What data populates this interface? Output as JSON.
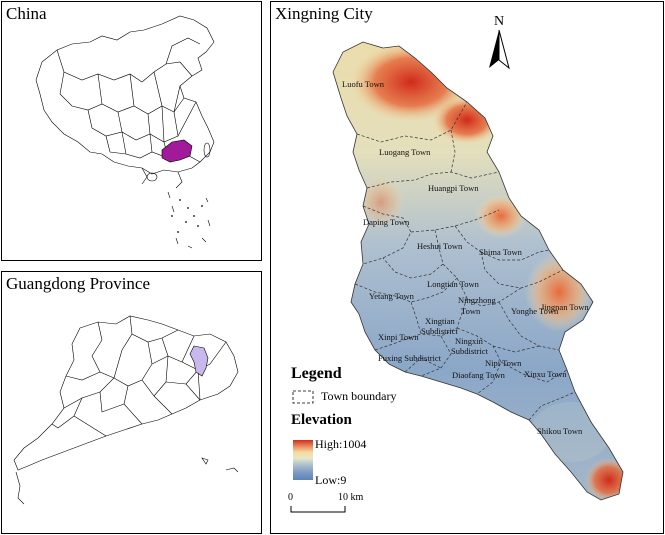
{
  "panels": {
    "china": {
      "title": "China"
    },
    "guangdong": {
      "title": "Guangdong Province"
    },
    "xingning": {
      "title": "Xingning City"
    }
  },
  "north_arrow": {
    "label": "N"
  },
  "towns": {
    "luofu": "Luofu Town",
    "luogang": "Luogang Town",
    "huangpi": "Huangpi Town",
    "diping": "Daping Town",
    "heshui": "Heshui Town",
    "shima": "Shima Town",
    "longtian": "Longtian Town",
    "yetang": "Yetang Town",
    "ningzhong": "Ningzhong",
    "ningzhong2": "Town",
    "yonghe": "Yonghe Town",
    "jingnan": "Jingnan Town",
    "xinjian1": "Xingtian",
    "xinjian2": "Subdistrict",
    "xinpi": "Xinpi Town",
    "ningxin1": "Ningxin",
    "ningxin2": "Subdistrict",
    "fuxing": "Fuxing Subdistrict",
    "nipi": "Nipi Town",
    "diaofang": "Diaofang Town",
    "xinxu": "Xinxu Town",
    "shikou": "Shikou Town"
  },
  "legend": {
    "title": "Legend",
    "boundary_label": "Town boundary",
    "elevation_title": "Elevation",
    "high_label": "High:1004",
    "low_label": "Low:9"
  },
  "elevation": {
    "high": 1004,
    "low": 9
  },
  "scale_bar": {
    "zero": "0",
    "end": "10 km"
  },
  "colors": {
    "china_highlight": "#a01a9a",
    "guangdong_highlight": "#c9b8ee",
    "elev_high": "#d7191c",
    "elev_mid": "#ffffbf",
    "elev_low": "#5b82b8"
  }
}
